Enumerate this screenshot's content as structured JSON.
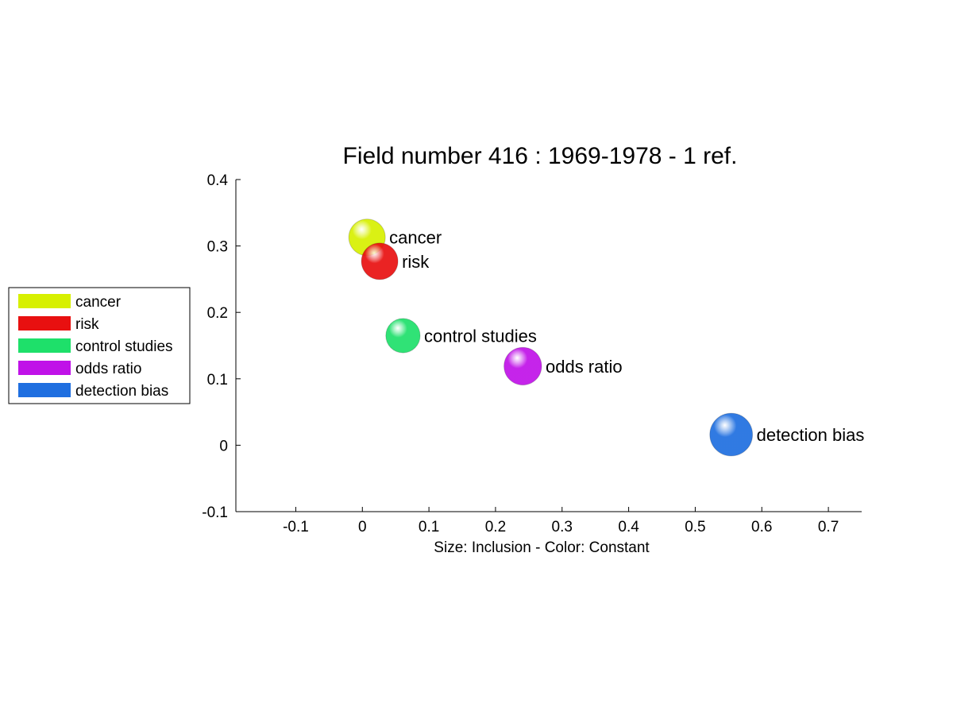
{
  "chart_data": {
    "type": "scatter",
    "title": "Field number 416 : 1969-1978  - 1 ref.",
    "xlabel": "Size: Inclusion - Color: Constant",
    "ylabel": "",
    "xlim": [
      -0.19,
      0.75
    ],
    "ylim": [
      -0.1,
      0.4
    ],
    "xticks": [
      "-0.1",
      "0",
      "0.1",
      "0.2",
      "0.3",
      "0.4",
      "0.5",
      "0.6",
      "0.7"
    ],
    "yticks": [
      "-0.1",
      "0",
      "0.1",
      "0.2",
      "0.3",
      "0.4"
    ],
    "grid": false,
    "legend_position": "left",
    "points": [
      {
        "name": "cancer",
        "x": 0.007,
        "y": 0.313,
        "size": 1.0,
        "color": "#d7f000"
      },
      {
        "name": "risk",
        "x": 0.026,
        "y": 0.277,
        "size": 1.0,
        "color": "#e81010"
      },
      {
        "name": "control studies",
        "x": 0.061,
        "y": 0.165,
        "size": 0.94,
        "color": "#1ee06a"
      },
      {
        "name": "odds ratio",
        "x": 0.241,
        "y": 0.119,
        "size": 1.03,
        "color": "#c012e8"
      },
      {
        "name": "detection bias",
        "x": 0.554,
        "y": 0.016,
        "size": 1.17,
        "color": "#1f6fe0"
      }
    ]
  }
}
